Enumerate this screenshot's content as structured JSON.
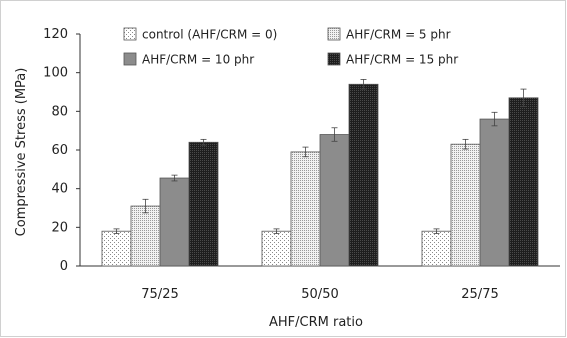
{
  "chart_data": {
    "type": "bar",
    "title": "",
    "xlabel": "AHF/CRM ratio",
    "ylabel": "Compressive Stress (MPa)",
    "ylim": [
      0,
      120
    ],
    "yticks": [
      0,
      20,
      40,
      60,
      80,
      100,
      120
    ],
    "grid": false,
    "legend_position": "top",
    "categories": [
      "75/25",
      "50/50",
      "25/75"
    ],
    "series": [
      {
        "name": "control (AHF/CRM = 0)",
        "values": [
          18,
          18,
          18
        ],
        "errors": [
          1.2,
          1.2,
          1.2
        ],
        "fill": "dots-light"
      },
      {
        "name": "AHF/CRM = 5 phr",
        "values": [
          31,
          59,
          63
        ],
        "errors": [
          3.5,
          2.5,
          2.5
        ],
        "fill": "dots-dense"
      },
      {
        "name": "AHF/CRM = 10 phr",
        "values": [
          45.5,
          68,
          76
        ],
        "errors": [
          1.5,
          3.5,
          3.5
        ],
        "fill": "gray"
      },
      {
        "name": "AHF/CRM = 15 phr",
        "values": [
          64,
          94,
          87
        ],
        "errors": [
          1.5,
          2.5,
          4.5
        ],
        "fill": "dark-check"
      }
    ]
  }
}
